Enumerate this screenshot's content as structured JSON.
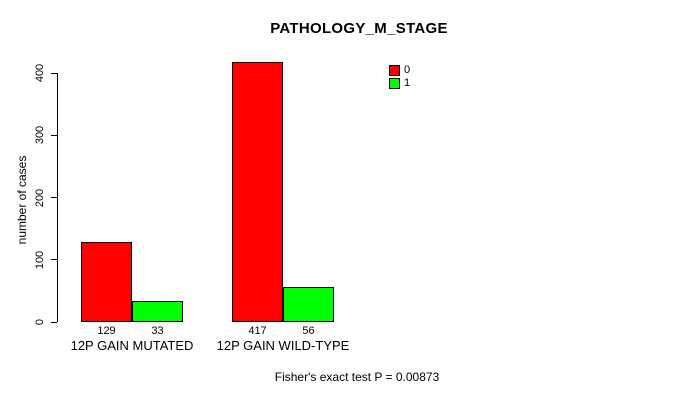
{
  "chart_data": {
    "type": "bar",
    "title": "PATHOLOGY_M_STAGE",
    "xlabel": "",
    "ylabel": "number of cases",
    "ylim": [
      0,
      400
    ],
    "yticks": [
      0,
      100,
      200,
      300,
      400
    ],
    "categories": [
      "12P GAIN MUTATED",
      "12P GAIN WILD-TYPE"
    ],
    "series": [
      {
        "name": "0",
        "color": "#ff0000",
        "values": [
          129,
          417
        ]
      },
      {
        "name": "1",
        "color": "#00ff00",
        "values": [
          33,
          56
        ]
      }
    ],
    "value_labels": [
      [
        "129",
        "33"
      ],
      [
        "417",
        "56"
      ]
    ],
    "legend": {
      "position": "top-right",
      "entries": [
        {
          "label": "0",
          "color": "#ff0000"
        },
        {
          "label": "1",
          "color": "#00ff00"
        }
      ]
    },
    "grid": false,
    "annotation": "Fisher's exact test P = 0.00873",
    "colors": {
      "axis": "#000000",
      "text": "#000000",
      "bar_border": "#000000",
      "background": "#ffffff"
    }
  }
}
